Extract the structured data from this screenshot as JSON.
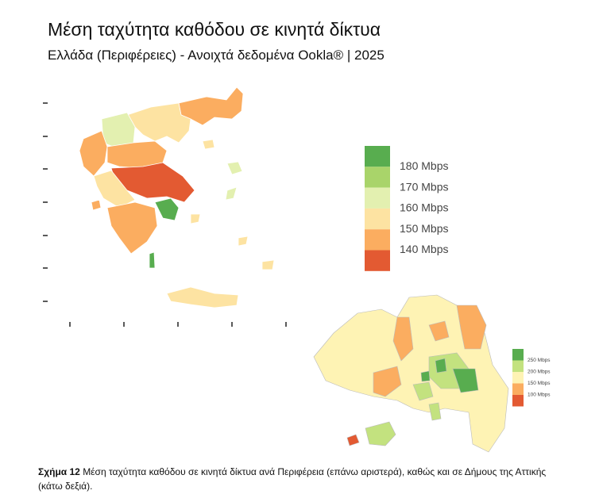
{
  "header": {
    "title": "Μέση ταχύτητα καθόδου σε κινητά δίκτυα",
    "subtitle": "Ελλάδα (Περιφέρειες) - Ανοιχτά δεδομένα Ookla® | 2025"
  },
  "main_legend": {
    "items": [
      {
        "label": "180 Mbps",
        "color": "#58ad4f"
      },
      {
        "label": "170 Mbps",
        "color": "#a9d46a"
      },
      {
        "label": "160 Mbps",
        "color": "#e3f0b0"
      },
      {
        "label": "150 Mbps",
        "color": "#fde3a2"
      },
      {
        "label": "140 Mbps",
        "color": "#fbad60"
      },
      {
        "label": null,
        "color": "#e35a32"
      }
    ]
  },
  "attica_legend": {
    "items": [
      {
        "label": "250 Mbps",
        "color": "#58ad4f"
      },
      {
        "label": "200 Mbps",
        "color": "#c3e27f"
      },
      {
        "label": "150 Mbps",
        "color": "#fef3b4"
      },
      {
        "label": "100 Mbps",
        "color": "#fbad60"
      },
      {
        "label": null,
        "color": "#e35a32"
      }
    ]
  },
  "caption": {
    "label": "Σχήμα 12",
    "text": "Μέση ταχύτητα καθόδου σε κινητά δίκτυα ανά Περιφέρεια (επάνω αριστερά), καθώς και σε Δήμους της Αττικής (κάτω δεξιά)."
  }
}
